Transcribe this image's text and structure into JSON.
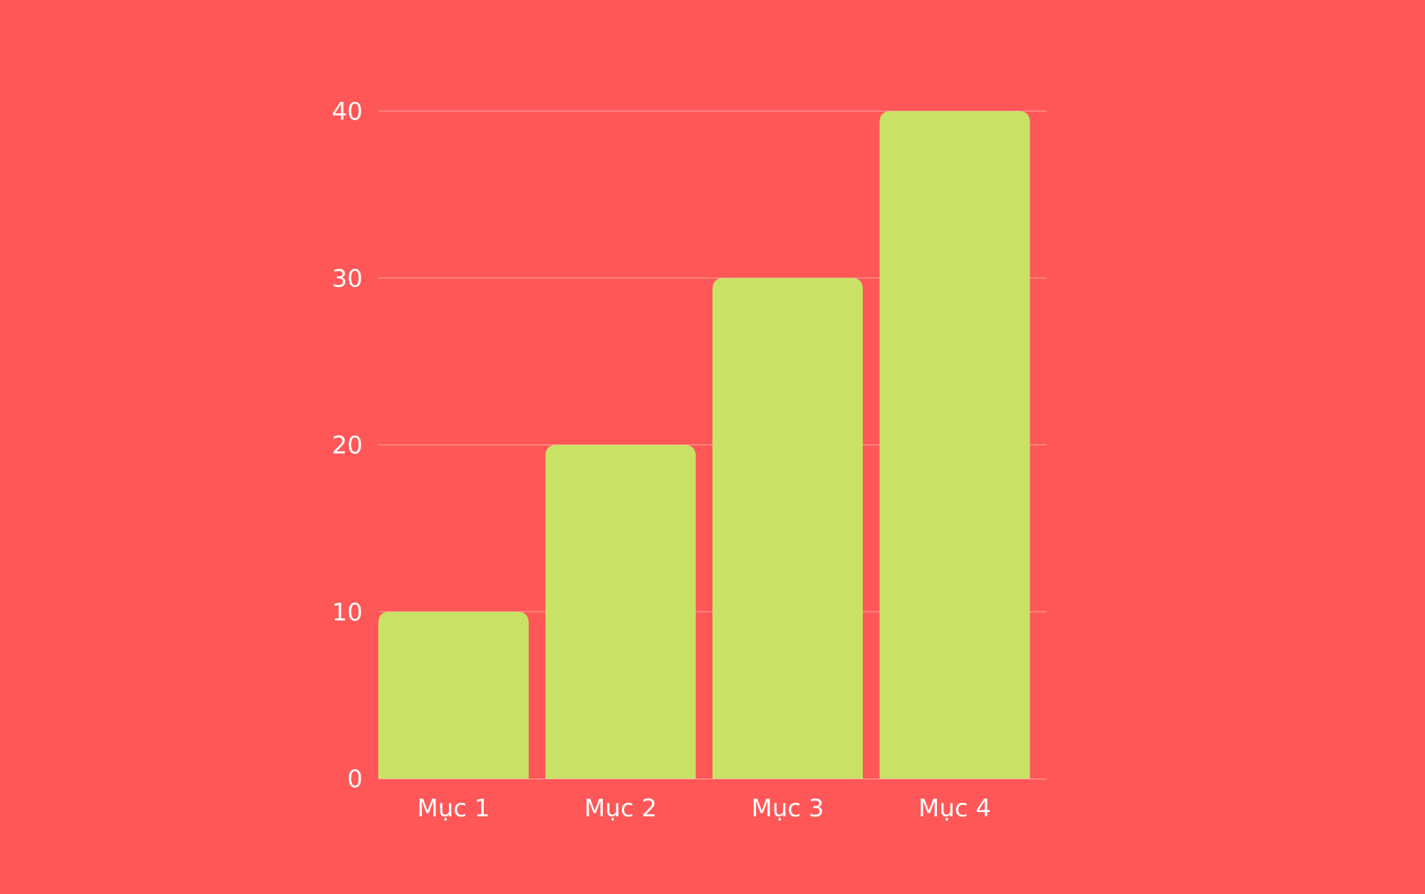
{
  "colors": {
    "background": "#ff5757",
    "bar": "#c9e265",
    "text": "#ffffff",
    "grid": "#ffa8a8"
  },
  "chart_data": {
    "type": "bar",
    "title": "",
    "xlabel": "",
    "ylabel": "",
    "categories": [
      "Mục 1",
      "Mục 2",
      "Mục 3",
      "Mục 4"
    ],
    "values": [
      10,
      20,
      30,
      40
    ],
    "ylim": [
      0,
      40
    ],
    "yticks": [
      "0",
      "10",
      "20",
      "30",
      "40"
    ],
    "grid": true,
    "legend": "none"
  }
}
